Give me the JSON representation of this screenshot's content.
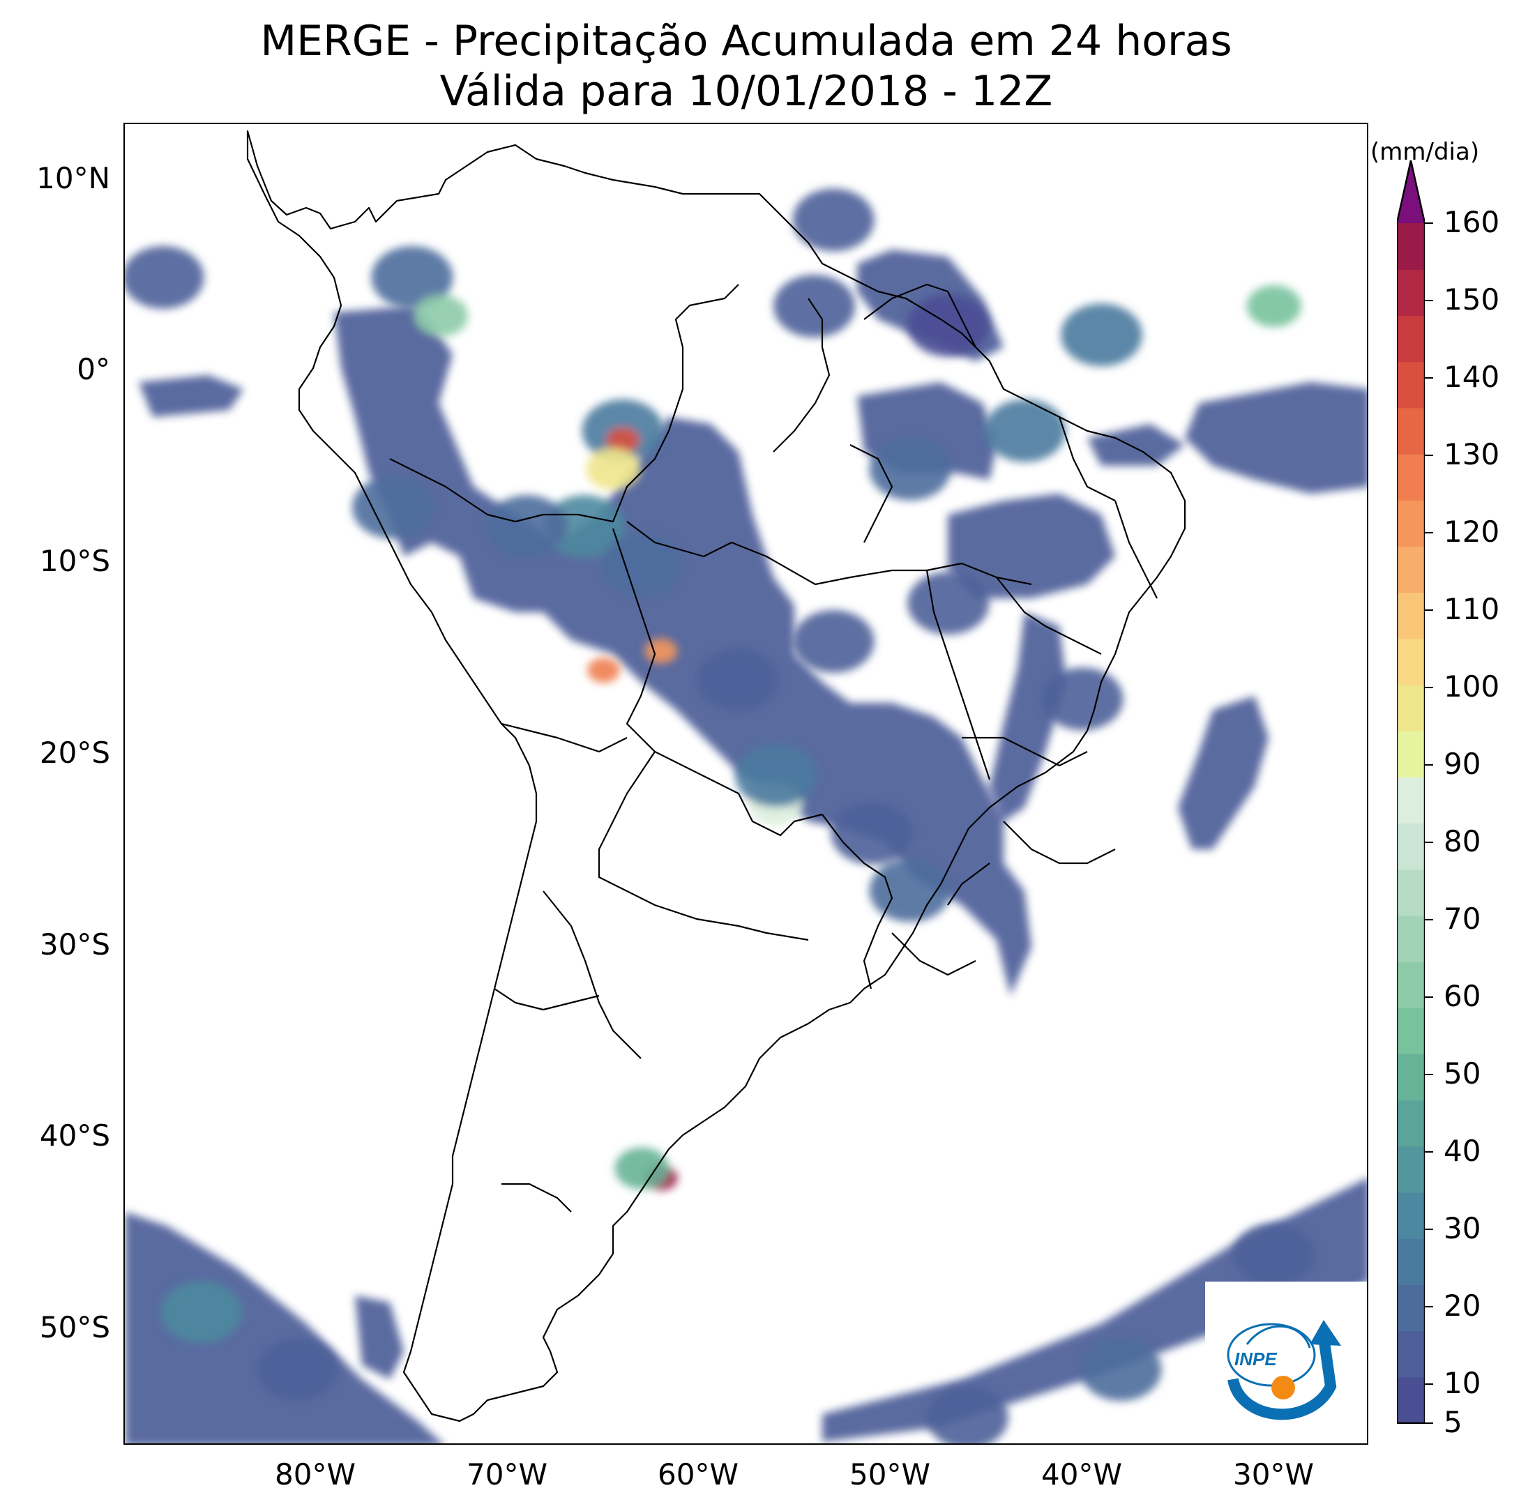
{
  "title": {
    "line1": "MERGE - Precipitação Acumulada em 24 horas",
    "line2": "Válida para 10/01/2018 - 12Z"
  },
  "map": {
    "lon_range": [
      -90,
      -25
    ],
    "lat_range": [
      -56,
      13
    ],
    "lat_ticks": [
      {
        "value": 10,
        "label": "10°N"
      },
      {
        "value": 0,
        "label": "0°"
      },
      {
        "value": -10,
        "label": "10°S"
      },
      {
        "value": -20,
        "label": "20°S"
      },
      {
        "value": -30,
        "label": "30°S"
      },
      {
        "value": -40,
        "label": "40°S"
      },
      {
        "value": -50,
        "label": "50°S"
      }
    ],
    "lon_ticks": [
      {
        "value": -80,
        "label": "80°W"
      },
      {
        "value": -70,
        "label": "70°W"
      },
      {
        "value": -60,
        "label": "60°W"
      },
      {
        "value": -50,
        "label": "50°W"
      },
      {
        "value": -40,
        "label": "40°W"
      },
      {
        "value": -30,
        "label": "30°W"
      }
    ],
    "precip_cells": [
      {
        "lon": -64,
        "lat": -3,
        "value": 25
      },
      {
        "lon": -64,
        "lat": -3.5,
        "value": 140
      },
      {
        "lon": -64.5,
        "lat": -5,
        "value": 95
      },
      {
        "lon": -66,
        "lat": -8,
        "value": 30
      },
      {
        "lon": -63,
        "lat": -10,
        "value": 20
      },
      {
        "lon": -69,
        "lat": -8,
        "value": 20
      },
      {
        "lon": -76,
        "lat": -7,
        "value": 20
      },
      {
        "lon": -65,
        "lat": -15.5,
        "value": 130
      },
      {
        "lon": -62,
        "lat": -14.5,
        "value": 120
      },
      {
        "lon": -58,
        "lat": -16,
        "value": 15
      },
      {
        "lon": -53,
        "lat": -14,
        "value": 15
      },
      {
        "lon": -56,
        "lat": -22.5,
        "value": 85
      },
      {
        "lon": -56,
        "lat": -21,
        "value": 25
      },
      {
        "lon": -51,
        "lat": -24,
        "value": 15
      },
      {
        "lon": -49,
        "lat": -27,
        "value": 20
      },
      {
        "lon": -47,
        "lat": -12,
        "value": 15
      },
      {
        "lon": -43,
        "lat": -3,
        "value": 25
      },
      {
        "lon": -49,
        "lat": -5,
        "value": 20
      },
      {
        "lon": -40,
        "lat": -17,
        "value": 15
      },
      {
        "lon": -54,
        "lat": 3.5,
        "value": 15
      },
      {
        "lon": -53,
        "lat": 8,
        "value": 15
      },
      {
        "lon": -75,
        "lat": 5,
        "value": 20
      },
      {
        "lon": -73.5,
        "lat": 3,
        "value": 60
      },
      {
        "lon": -88,
        "lat": 5,
        "value": 15
      },
      {
        "lon": -30,
        "lat": 3.5,
        "value": 55
      },
      {
        "lon": -39,
        "lat": 2,
        "value": 25
      },
      {
        "lon": -47,
        "lat": 2.5,
        "value": 10
      },
      {
        "lon": -62,
        "lat": -42,
        "value": 160
      },
      {
        "lon": -63,
        "lat": -41.5,
        "value": 50
      },
      {
        "lon": -86,
        "lat": -49,
        "value": 30
      },
      {
        "lon": -81,
        "lat": -52,
        "value": 15
      },
      {
        "lon": -38,
        "lat": -52,
        "value": 20
      },
      {
        "lon": -30,
        "lat": -46,
        "value": 15
      },
      {
        "lon": -46,
        "lat": -54.5,
        "value": 15
      }
    ]
  },
  "colorbar": {
    "units": "(mm/dia)",
    "min": 5,
    "max": 160,
    "ticks": [
      {
        "value": 10,
        "label": "10"
      },
      {
        "value": 20,
        "label": "20"
      },
      {
        "value": 30,
        "label": "30"
      },
      {
        "value": 40,
        "label": "40"
      },
      {
        "value": 50,
        "label": "50"
      },
      {
        "value": 60,
        "label": "60"
      },
      {
        "value": 70,
        "label": "70"
      },
      {
        "value": 80,
        "label": "80"
      },
      {
        "value": 90,
        "label": "90"
      },
      {
        "value": 100,
        "label": "100"
      },
      {
        "value": 110,
        "label": "110"
      },
      {
        "value": 120,
        "label": "120"
      },
      {
        "value": 130,
        "label": "130"
      },
      {
        "value": 140,
        "label": "140"
      },
      {
        "value": 150,
        "label": "150"
      },
      {
        "value": 160,
        "label": "160"
      }
    ],
    "min_label": "5",
    "extend_color": "#7b0f7c",
    "colors": [
      "#4a4e93",
      "#4e5f99",
      "#4c6d9c",
      "#4b7a9f",
      "#4c889f",
      "#53979d",
      "#5aa499",
      "#66b397",
      "#78c29c",
      "#8dcba8",
      "#a2d3b6",
      "#b7dcc5",
      "#cbe5d5",
      "#dceedd",
      "#e6f4a0",
      "#f0e68c",
      "#f8d883",
      "#f9c577",
      "#f8ad6a",
      "#f5965d",
      "#f07e50",
      "#e76745",
      "#d9503e",
      "#c83c40",
      "#b02844",
      "#9a1b47"
    ]
  },
  "logo": {
    "text": "INPE",
    "colors": {
      "blue": "#0a6fb3",
      "orange": "#f38a14"
    }
  }
}
